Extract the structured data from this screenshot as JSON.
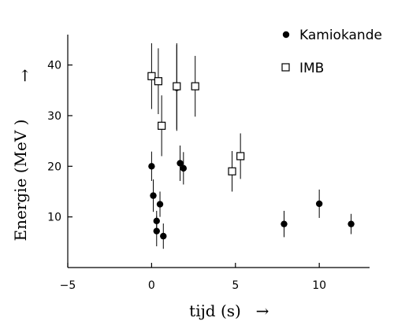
{
  "chart_data": {
    "type": "scatter",
    "xlabel": "tijd (s)",
    "x_arrow": "→",
    "ylabel": "Energie (MeV )",
    "y_arrow": "→",
    "xlim": [
      -5,
      13
    ],
    "ylim": [
      0,
      46
    ],
    "x_ticks": [
      -5,
      0,
      5,
      10
    ],
    "x_tick_labels": [
      "−5",
      "0",
      "5",
      "10"
    ],
    "y_ticks": [
      10,
      20,
      30,
      40
    ],
    "y_tick_labels": [
      "10",
      "20",
      "30",
      "40"
    ],
    "grid": false,
    "legend_position": "top-right",
    "series": [
      {
        "name": "Kamiokande",
        "marker": "filled-circle",
        "color": "#000000",
        "points": [
          {
            "x": 0.0,
            "y": 20.0,
            "err": 2.9
          },
          {
            "x": 0.1,
            "y": 14.2,
            "err": 3.2
          },
          {
            "x": 0.3,
            "y": 9.2,
            "err": 2.0
          },
          {
            "x": 0.3,
            "y": 7.2,
            "err": 3.0
          },
          {
            "x": 0.5,
            "y": 12.5,
            "err": 2.5
          },
          {
            "x": 0.7,
            "y": 6.2,
            "err": 2.5
          },
          {
            "x": 1.5,
            "y": 35.5,
            "err": 8.5
          },
          {
            "x": 1.7,
            "y": 20.6,
            "err": 3.5
          },
          {
            "x": 1.9,
            "y": 19.6,
            "err": 3.2
          },
          {
            "x": 7.9,
            "y": 8.6,
            "err": 2.6
          },
          {
            "x": 10.0,
            "y": 12.6,
            "err": 2.8
          },
          {
            "x": 11.9,
            "y": 8.6,
            "err": 2.0
          }
        ]
      },
      {
        "name": "IMB",
        "marker": "open-square",
        "color": "#000000",
        "points": [
          {
            "x": 0.0,
            "y": 37.8,
            "err": 6.5
          },
          {
            "x": 0.4,
            "y": 36.8,
            "err": 6.5
          },
          {
            "x": 0.6,
            "y": 28.0,
            "err": 6.0
          },
          {
            "x": 1.5,
            "y": 35.8,
            "err": 8.5
          },
          {
            "x": 2.6,
            "y": 35.8,
            "err": 6.0
          },
          {
            "x": 4.8,
            "y": 19.0,
            "err": 4.0
          },
          {
            "x": 5.3,
            "y": 22.0,
            "err": 4.5
          }
        ]
      }
    ]
  }
}
